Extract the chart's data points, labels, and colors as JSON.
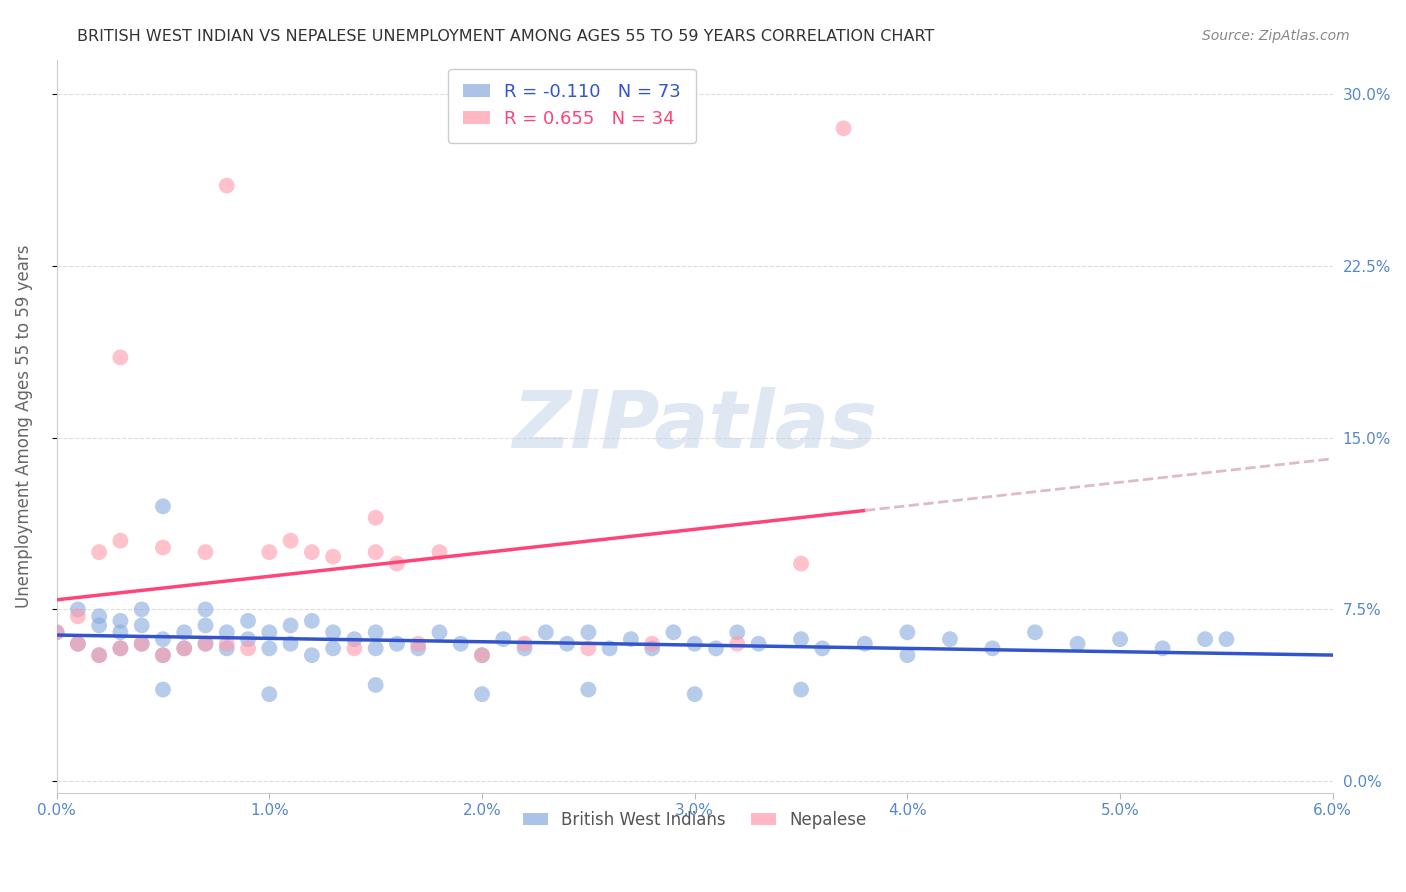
{
  "title": "BRITISH WEST INDIAN VS NEPALESE UNEMPLOYMENT AMONG AGES 55 TO 59 YEARS CORRELATION CHART",
  "source": "Source: ZipAtlas.com",
  "ylabel": "Unemployment Among Ages 55 to 59 years",
  "xlim": [
    0.0,
    0.06
  ],
  "ylim": [
    -0.005,
    0.315
  ],
  "ytick_vals": [
    0.0,
    0.075,
    0.15,
    0.225,
    0.3
  ],
  "xtick_vals": [
    0.0,
    0.01,
    0.02,
    0.03,
    0.04,
    0.05,
    0.06
  ],
  "bwi_color": "#88AADD",
  "nep_color": "#FF99AA",
  "bwi_line_color": "#3355CC",
  "nep_line_color": "#FF4477",
  "nep_line_dash_color": "#DDBBCC",
  "R_bwi": -0.11,
  "N_bwi": 73,
  "R_nep": 0.655,
  "N_nep": 34,
  "legend_label_bwi": "British West Indians",
  "legend_label_nep": "Nepalese",
  "watermark": "ZIPatlas",
  "tick_color": "#5588CC",
  "grid_color": "#DDDDDD",
  "bwi_x": [
    0.0,
    0.001,
    0.001,
    0.002,
    0.002,
    0.002,
    0.003,
    0.003,
    0.003,
    0.004,
    0.004,
    0.004,
    0.005,
    0.005,
    0.005,
    0.006,
    0.006,
    0.007,
    0.007,
    0.007,
    0.008,
    0.008,
    0.009,
    0.009,
    0.01,
    0.01,
    0.011,
    0.011,
    0.012,
    0.012,
    0.013,
    0.013,
    0.014,
    0.015,
    0.015,
    0.016,
    0.017,
    0.018,
    0.019,
    0.02,
    0.021,
    0.022,
    0.023,
    0.024,
    0.025,
    0.026,
    0.027,
    0.028,
    0.029,
    0.03,
    0.031,
    0.032,
    0.033,
    0.035,
    0.036,
    0.038,
    0.04,
    0.042,
    0.044,
    0.046,
    0.048,
    0.05,
    0.052,
    0.054,
    0.005,
    0.01,
    0.015,
    0.02,
    0.025,
    0.03,
    0.035,
    0.04,
    0.055
  ],
  "bwi_y": [
    0.065,
    0.06,
    0.075,
    0.055,
    0.068,
    0.072,
    0.058,
    0.07,
    0.065,
    0.06,
    0.068,
    0.075,
    0.055,
    0.062,
    0.12,
    0.058,
    0.065,
    0.06,
    0.068,
    0.075,
    0.058,
    0.065,
    0.062,
    0.07,
    0.058,
    0.065,
    0.06,
    0.068,
    0.055,
    0.07,
    0.058,
    0.065,
    0.062,
    0.058,
    0.065,
    0.06,
    0.058,
    0.065,
    0.06,
    0.055,
    0.062,
    0.058,
    0.065,
    0.06,
    0.065,
    0.058,
    0.062,
    0.058,
    0.065,
    0.06,
    0.058,
    0.065,
    0.06,
    0.062,
    0.058,
    0.06,
    0.055,
    0.062,
    0.058,
    0.065,
    0.06,
    0.062,
    0.058,
    0.062,
    0.04,
    0.038,
    0.042,
    0.038,
    0.04,
    0.038,
    0.04,
    0.065,
    0.062
  ],
  "nep_x": [
    0.0,
    0.001,
    0.001,
    0.002,
    0.002,
    0.003,
    0.003,
    0.004,
    0.005,
    0.005,
    0.006,
    0.007,
    0.007,
    0.008,
    0.009,
    0.01,
    0.011,
    0.012,
    0.013,
    0.014,
    0.015,
    0.016,
    0.017,
    0.018,
    0.02,
    0.022,
    0.025,
    0.028,
    0.032,
    0.035,
    0.003,
    0.008,
    0.037,
    0.015
  ],
  "nep_y": [
    0.065,
    0.06,
    0.072,
    0.055,
    0.1,
    0.058,
    0.105,
    0.06,
    0.055,
    0.102,
    0.058,
    0.06,
    0.1,
    0.06,
    0.058,
    0.1,
    0.105,
    0.1,
    0.098,
    0.058,
    0.1,
    0.095,
    0.06,
    0.1,
    0.055,
    0.06,
    0.058,
    0.06,
    0.06,
    0.095,
    0.185,
    0.26,
    0.285,
    0.115
  ]
}
